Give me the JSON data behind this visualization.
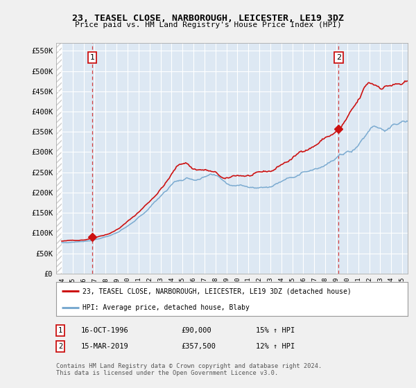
{
  "title": "23, TEASEL CLOSE, NARBOROUGH, LEICESTER, LE19 3DZ",
  "subtitle": "Price paid vs. HM Land Registry's House Price Index (HPI)",
  "ylabel_ticks": [
    "£0",
    "£50K",
    "£100K",
    "£150K",
    "£200K",
    "£250K",
    "£300K",
    "£350K",
    "£400K",
    "£450K",
    "£500K",
    "£550K"
  ],
  "ytick_values": [
    0,
    50000,
    100000,
    150000,
    200000,
    250000,
    300000,
    350000,
    400000,
    450000,
    500000,
    550000
  ],
  "ylim": [
    0,
    570000
  ],
  "xlim_start": 1993.5,
  "xlim_end": 2025.5,
  "purchase1_date": 1996.79,
  "purchase1_price": 90000,
  "purchase1_label": "1",
  "purchase2_date": 2019.21,
  "purchase2_price": 357500,
  "purchase2_label": "2",
  "hpi_color": "#7aaad0",
  "price_color": "#cc1111",
  "vline_color": "#cc1111",
  "legend_label1": "23, TEASEL CLOSE, NARBOROUGH, LEICESTER, LE19 3DZ (detached house)",
  "legend_label2": "HPI: Average price, detached house, Blaby",
  "table_row1": [
    "1",
    "16-OCT-1996",
    "£90,000",
    "15% ↑ HPI"
  ],
  "table_row2": [
    "2",
    "15-MAR-2019",
    "£357,500",
    "12% ↑ HPI"
  ],
  "footnote": "Contains HM Land Registry data © Crown copyright and database right 2024.\nThis data is licensed under the Open Government Licence v3.0.",
  "background_color": "#f0f0f0",
  "plot_bg_color": "#dde8f3"
}
